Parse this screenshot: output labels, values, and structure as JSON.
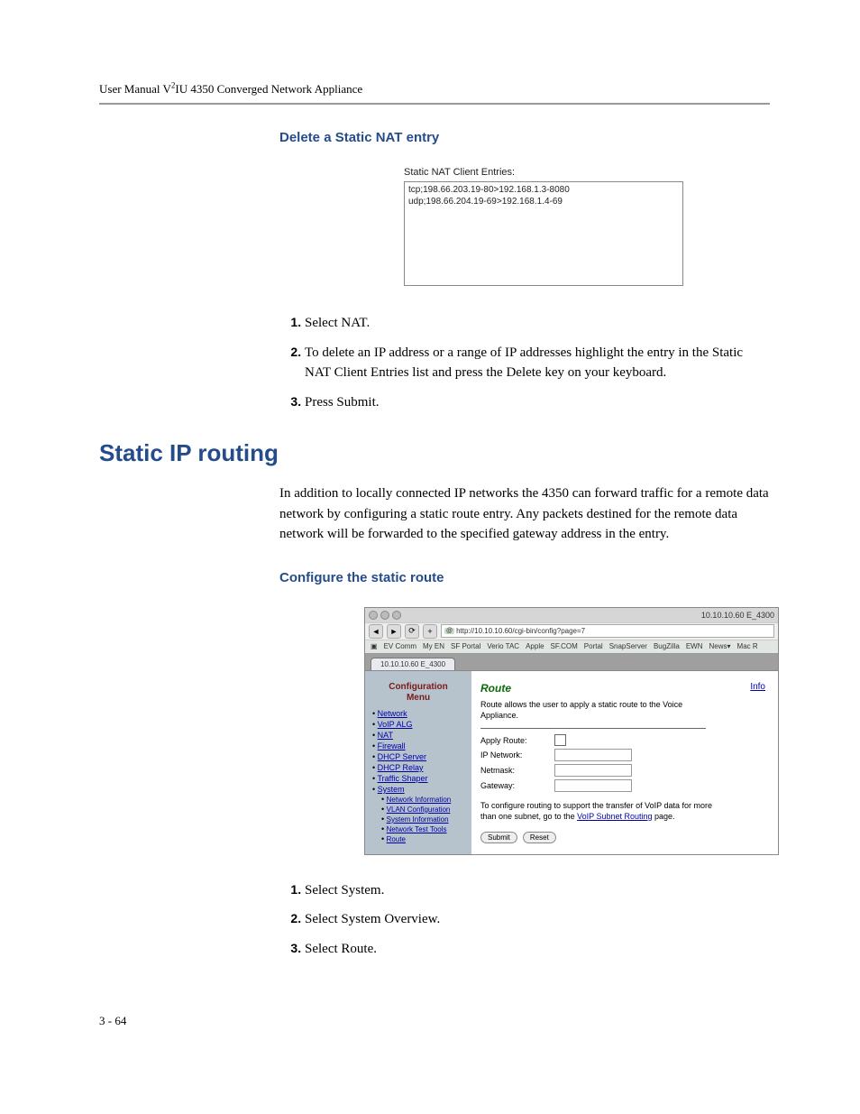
{
  "header": {
    "text_pre": "User Manual V",
    "text_sup": "2",
    "text_post": "IU 4350 Converged Network Appliance"
  },
  "section1": {
    "heading": "Delete a Static NAT entry",
    "nat_label": "Static NAT Client Entries:",
    "nat_lines": [
      "tcp;198.66.203.19-80>192.168.1.3-8080",
      "udp;198.66.204.19-69>192.168.1.4-69"
    ],
    "steps": [
      "Select NAT.",
      "To delete an IP address or a range of IP addresses highlight the entry in the Static NAT Client Entries list and press the Delete key on your keyboard.",
      "Press Submit."
    ]
  },
  "section2": {
    "heading": "Static IP routing",
    "para": "In addition to locally connected IP networks the 4350 can forward traffic for a remote data network by configuring a static route entry. Any packets destined for the remote data network will be forwarded to the specified gateway address in the entry.",
    "sub_heading": "Configure the static route"
  },
  "screenshot": {
    "window_title_right": "10.10.10.60 E_4300",
    "url": "http://10.10.10.60/cgi-bin/config?page=7",
    "bookmarks": [
      "EV Comm",
      "My EN",
      "SF Portal",
      "Verio TAC",
      "Apple",
      "SF.COM",
      "Portal",
      "SnapServer",
      "BugZilla",
      "EWN",
      "News▾",
      "Mac R"
    ],
    "tab": "10.10.10.60 E_4300",
    "cfg_menu_title1": "Configuration",
    "cfg_menu_title2": "Menu",
    "menu": [
      "Network",
      "VoIP ALG",
      "NAT",
      "Firewall",
      "DHCP Server",
      "DHCP Relay",
      "Traffic Shaper",
      "System"
    ],
    "submenu": [
      "Network Information",
      "VLAN Configuration",
      "System Information",
      "Network Test Tools",
      "Route"
    ],
    "route_title": "Route",
    "info_link": "Info",
    "route_desc": "Route allows the user to apply a static route to the Voice Appliance.",
    "form": {
      "apply_route": "Apply Route:",
      "ip_network": "IP Network:",
      "netmask": "Netmask:",
      "gateway": "Gateway:"
    },
    "note_pre": "To configure routing to support the transfer of VoIP data for more than one subnet, go to the ",
    "note_link": "VoIP Subnet Routing",
    "note_post": " page.",
    "buttons": {
      "submit": "Submit",
      "reset": "Reset"
    }
  },
  "section3_steps": [
    "Select System.",
    "Select System Overview.",
    "Select Route."
  ],
  "footer": "3 - 64",
  "colors": {
    "heading_blue": "#244c8a",
    "link_blue": "#0000aa",
    "green": "#0a6b0a",
    "side_bg": "#b6c3cc",
    "red": "#7a1a1a"
  }
}
